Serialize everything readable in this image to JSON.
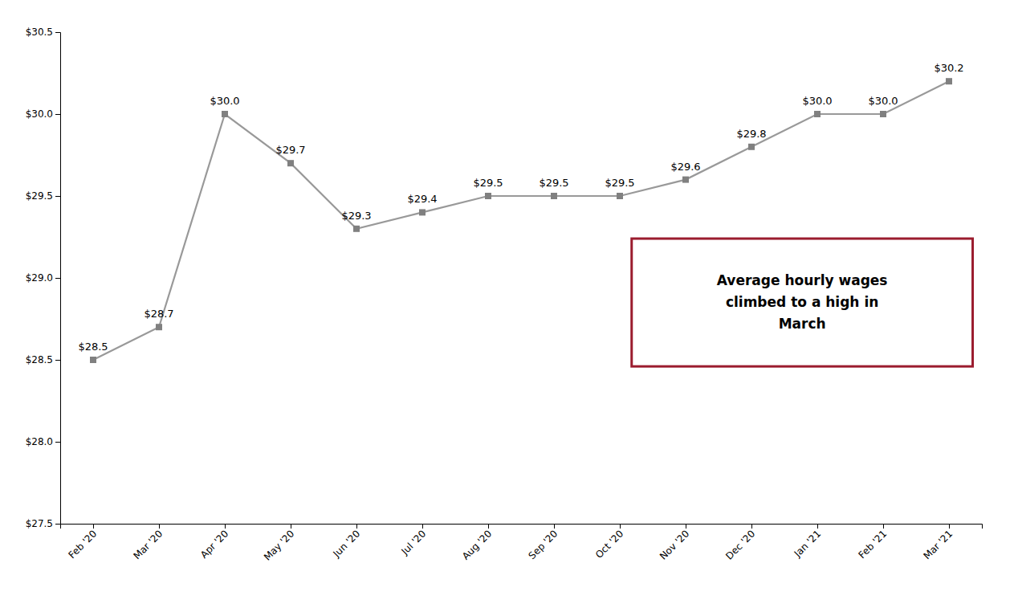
{
  "chart_data": {
    "type": "line",
    "categories": [
      "Feb '20",
      "Mar '20",
      "Apr '20",
      "May '20",
      "Jun '20",
      "Jul '20",
      "Aug '20",
      "Sep '20",
      "Oct '20",
      "Nov '20",
      "Dec '20",
      "Jan '21",
      "Feb '21",
      "Mar '21"
    ],
    "values": [
      28.5,
      28.7,
      30.0,
      29.7,
      29.3,
      29.4,
      29.5,
      29.5,
      29.5,
      29.6,
      29.8,
      30.0,
      30.0,
      30.2
    ],
    "value_labels": [
      "$28.5",
      "$28.7",
      "$30.0",
      "$29.7",
      "$29.3",
      "$29.4",
      "$29.5",
      "$29.5",
      "$29.5",
      "$29.6",
      "$29.8",
      "$30.0",
      "$30.0",
      "$30.2"
    ],
    "data_labels": true,
    "color": "#999999",
    "marker": "square",
    "grid": false,
    "ylim": [
      27.5,
      30.5
    ],
    "yticks": [
      {
        "value": 27.5,
        "label": "$27.5"
      },
      {
        "value": 28.0,
        "label": "$28.0"
      },
      {
        "value": 28.5,
        "label": "$28.5"
      },
      {
        "value": 29.0,
        "label": "$29.0"
      },
      {
        "value": 29.5,
        "label": "$29.5"
      },
      {
        "value": 30.0,
        "label": "$30.0"
      },
      {
        "value": 30.5,
        "label": "$30.5"
      }
    ],
    "annotations": [
      "Average hourly wages\nclimbed to a high in\nMarch"
    ]
  }
}
